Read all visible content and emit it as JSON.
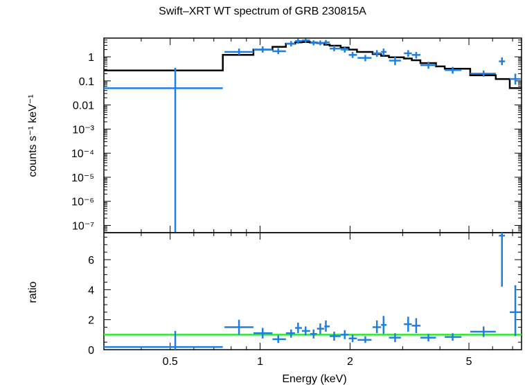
{
  "title": "Swift–XRT WT spectrum of GRB 230815A",
  "colors": {
    "data": "#1f7fe0",
    "model": "#000000",
    "unity": "#2ee82e",
    "frame": "#000000"
  },
  "chart_data": [
    {
      "type": "scatter",
      "panel": "spectrum",
      "ylabel": "counts s⁻¹ keV⁻¹",
      "yscale": "log",
      "xscale": "log",
      "xlim": [
        0.3,
        7.5
      ],
      "ylim": [
        5e-08,
        6
      ],
      "ytick_labels": [
        "1",
        "0.1",
        "0.01",
        "10⁻³",
        "10⁻⁴",
        "10⁻⁵",
        "10⁻⁶",
        "10⁻⁷"
      ],
      "ytick_values": [
        1,
        0.1,
        0.01,
        0.001,
        0.0001,
        1e-05,
        1e-06,
        1e-07
      ],
      "series": [
        {
          "points": [
            {
              "x": 0.52,
              "xlo": 0.3,
              "xhi": 0.75,
              "y": 0.05,
              "ylo": 5e-08,
              "yhi": 0.35
            },
            {
              "x": 0.85,
              "xlo": 0.76,
              "xhi": 0.95,
              "y": 1.6,
              "ylo": 1.2,
              "yhi": 2.2
            },
            {
              "x": 1.02,
              "xlo": 0.95,
              "xhi": 1.1,
              "y": 2.0,
              "ylo": 1.5,
              "yhi": 2.7
            },
            {
              "x": 1.15,
              "xlo": 1.1,
              "xhi": 1.22,
              "y": 1.7,
              "ylo": 1.3,
              "yhi": 2.3
            },
            {
              "x": 1.27,
              "xlo": 1.22,
              "xhi": 1.31,
              "y": 3.5,
              "ylo": 2.7,
              "yhi": 4.5
            },
            {
              "x": 1.34,
              "xlo": 1.31,
              "xhi": 1.38,
              "y": 4.5,
              "ylo": 3.5,
              "yhi": 5.6
            },
            {
              "x": 1.42,
              "xlo": 1.38,
              "xhi": 1.47,
              "y": 4.8,
              "ylo": 3.8,
              "yhi": 5.8
            },
            {
              "x": 1.51,
              "xlo": 1.47,
              "xhi": 1.55,
              "y": 3.8,
              "ylo": 3.0,
              "yhi": 4.8
            },
            {
              "x": 1.59,
              "xlo": 1.55,
              "xhi": 1.64,
              "y": 3.8,
              "ylo": 3.0,
              "yhi": 4.8
            },
            {
              "x": 1.66,
              "xlo": 1.64,
              "xhi": 1.71,
              "y": 4.0,
              "ylo": 3.2,
              "yhi": 5.0
            },
            {
              "x": 1.77,
              "xlo": 1.71,
              "xhi": 1.86,
              "y": 2.2,
              "ylo": 1.7,
              "yhi": 2.9
            },
            {
              "x": 1.92,
              "xlo": 1.86,
              "xhi": 1.98,
              "y": 2.0,
              "ylo": 1.5,
              "yhi": 2.7
            },
            {
              "x": 2.04,
              "xlo": 1.98,
              "xhi": 2.11,
              "y": 1.2,
              "ylo": 0.9,
              "yhi": 1.6
            },
            {
              "x": 2.25,
              "xlo": 2.12,
              "xhi": 2.36,
              "y": 0.9,
              "ylo": 0.65,
              "yhi": 1.2
            },
            {
              "x": 2.46,
              "xlo": 2.38,
              "xhi": 2.54,
              "y": 1.4,
              "ylo": 1.0,
              "yhi": 1.9
            },
            {
              "x": 2.59,
              "xlo": 2.54,
              "xhi": 2.65,
              "y": 1.6,
              "ylo": 1.1,
              "yhi": 2.2
            },
            {
              "x": 2.83,
              "xlo": 2.7,
              "xhi": 2.96,
              "y": 0.7,
              "ylo": 0.45,
              "yhi": 1.0
            },
            {
              "x": 3.13,
              "xlo": 3.03,
              "xhi": 3.22,
              "y": 1.4,
              "ylo": 1.0,
              "yhi": 1.9
            },
            {
              "x": 3.33,
              "xlo": 3.22,
              "xhi": 3.44,
              "y": 1.2,
              "ylo": 0.85,
              "yhi": 1.6
            },
            {
              "x": 3.66,
              "xlo": 3.44,
              "xhi": 3.88,
              "y": 0.45,
              "ylo": 0.32,
              "yhi": 0.62
            },
            {
              "x": 4.41,
              "xlo": 4.15,
              "xhi": 4.72,
              "y": 0.28,
              "ylo": 0.2,
              "yhi": 0.38
            },
            {
              "x": 5.6,
              "xlo": 5.05,
              "xhi": 6.15,
              "y": 0.2,
              "ylo": 0.15,
              "yhi": 0.27
            },
            {
              "x": 6.45,
              "xlo": 6.3,
              "xhi": 6.6,
              "y": 0.65,
              "ylo": 0.45,
              "yhi": 0.95
            },
            {
              "x": 7.15,
              "xlo": 6.85,
              "xhi": 7.45,
              "y": 0.12,
              "ylo": 0.07,
              "yhi": 0.2
            }
          ]
        }
      ],
      "model_steps": [
        {
          "x0": 0.3,
          "x1": 0.75,
          "y": 0.27
        },
        {
          "x0": 0.75,
          "x1": 0.95,
          "y": 1.2
        },
        {
          "x0": 0.95,
          "x1": 1.1,
          "y": 2.0
        },
        {
          "x0": 1.1,
          "x1": 1.22,
          "y": 2.6
        },
        {
          "x0": 1.22,
          "x1": 1.31,
          "y": 3.5
        },
        {
          "x0": 1.31,
          "x1": 1.38,
          "y": 4.0
        },
        {
          "x0": 1.38,
          "x1": 1.47,
          "y": 4.1
        },
        {
          "x0": 1.47,
          "x1": 1.55,
          "y": 3.9
        },
        {
          "x0": 1.55,
          "x1": 1.64,
          "y": 3.7
        },
        {
          "x0": 1.64,
          "x1": 1.71,
          "y": 3.2
        },
        {
          "x0": 1.71,
          "x1": 1.86,
          "y": 2.9
        },
        {
          "x0": 1.86,
          "x1": 1.98,
          "y": 2.4
        },
        {
          "x0": 1.98,
          "x1": 2.11,
          "y": 2.0
        },
        {
          "x0": 2.11,
          "x1": 2.38,
          "y": 1.6
        },
        {
          "x0": 2.38,
          "x1": 2.54,
          "y": 1.3
        },
        {
          "x0": 2.54,
          "x1": 2.7,
          "y": 1.1
        },
        {
          "x0": 2.7,
          "x1": 3.03,
          "y": 0.95
        },
        {
          "x0": 3.03,
          "x1": 3.22,
          "y": 0.85
        },
        {
          "x0": 3.22,
          "x1": 3.44,
          "y": 0.72
        },
        {
          "x0": 3.44,
          "x1": 3.88,
          "y": 0.55
        },
        {
          "x0": 3.88,
          "x1": 4.15,
          "y": 0.4
        },
        {
          "x0": 4.15,
          "x1": 5.05,
          "y": 0.32
        },
        {
          "x0": 5.05,
          "x1": 6.15,
          "y": 0.17
        },
        {
          "x0": 6.15,
          "x1": 6.85,
          "y": 0.12
        },
        {
          "x0": 6.85,
          "x1": 7.5,
          "y": 0.05
        }
      ]
    },
    {
      "type": "scatter",
      "panel": "ratio",
      "xlabel": "Energy (keV)",
      "ylabel": "ratio",
      "xscale": "log",
      "xlim": [
        0.3,
        7.5
      ],
      "ylim": [
        0,
        7.8
      ],
      "ytick_labels": [
        "0",
        "2",
        "4",
        "6"
      ],
      "ytick_values": [
        0,
        2,
        4,
        6
      ],
      "xtick_labels": [
        "0.5",
        "1",
        "2",
        "5"
      ],
      "xtick_values": [
        0.5,
        1,
        2,
        5
      ],
      "unity_line": 1,
      "series": [
        {
          "points": [
            {
              "x": 0.52,
              "xlo": 0.3,
              "xhi": 0.75,
              "y": 0.18,
              "ylo": 0,
              "yhi": 1.25
            },
            {
              "x": 0.85,
              "xlo": 0.76,
              "xhi": 0.95,
              "y": 1.5,
              "ylo": 1.0,
              "yhi": 2.0
            },
            {
              "x": 1.02,
              "xlo": 0.95,
              "xhi": 1.1,
              "y": 1.1,
              "ylo": 0.75,
              "yhi": 1.45
            },
            {
              "x": 1.15,
              "xlo": 1.1,
              "xhi": 1.22,
              "y": 0.7,
              "ylo": 0.45,
              "yhi": 0.95
            },
            {
              "x": 1.27,
              "xlo": 1.22,
              "xhi": 1.31,
              "y": 1.1,
              "ylo": 0.8,
              "yhi": 1.35
            },
            {
              "x": 1.34,
              "xlo": 1.31,
              "xhi": 1.38,
              "y": 1.45,
              "ylo": 1.1,
              "yhi": 1.8
            },
            {
              "x": 1.42,
              "xlo": 1.38,
              "xhi": 1.47,
              "y": 1.25,
              "ylo": 0.95,
              "yhi": 1.55
            },
            {
              "x": 1.51,
              "xlo": 1.47,
              "xhi": 1.55,
              "y": 1.05,
              "ylo": 0.75,
              "yhi": 1.35
            },
            {
              "x": 1.59,
              "xlo": 1.55,
              "xhi": 1.64,
              "y": 1.4,
              "ylo": 1.05,
              "yhi": 1.75
            },
            {
              "x": 1.66,
              "xlo": 1.64,
              "xhi": 1.71,
              "y": 1.55,
              "ylo": 1.2,
              "yhi": 1.95
            },
            {
              "x": 1.77,
              "xlo": 1.71,
              "xhi": 1.86,
              "y": 0.9,
              "ylo": 0.6,
              "yhi": 1.2
            },
            {
              "x": 1.92,
              "xlo": 1.86,
              "xhi": 1.98,
              "y": 1.0,
              "ylo": 0.7,
              "yhi": 1.3
            },
            {
              "x": 2.04,
              "xlo": 1.98,
              "xhi": 2.11,
              "y": 0.75,
              "ylo": 0.5,
              "yhi": 1.0
            },
            {
              "x": 2.25,
              "xlo": 2.12,
              "xhi": 2.36,
              "y": 0.65,
              "ylo": 0.45,
              "yhi": 0.9
            },
            {
              "x": 2.46,
              "xlo": 2.38,
              "xhi": 2.54,
              "y": 1.5,
              "ylo": 1.1,
              "yhi": 1.95
            },
            {
              "x": 2.59,
              "xlo": 2.54,
              "xhi": 2.65,
              "y": 1.65,
              "ylo": 1.05,
              "yhi": 2.25
            },
            {
              "x": 2.83,
              "xlo": 2.7,
              "xhi": 2.96,
              "y": 0.8,
              "ylo": 0.5,
              "yhi": 1.1
            },
            {
              "x": 3.13,
              "xlo": 3.03,
              "xhi": 3.22,
              "y": 1.7,
              "ylo": 1.2,
              "yhi": 2.2
            },
            {
              "x": 3.33,
              "xlo": 3.22,
              "xhi": 3.44,
              "y": 1.6,
              "ylo": 1.1,
              "yhi": 2.1
            },
            {
              "x": 3.66,
              "xlo": 3.44,
              "xhi": 3.88,
              "y": 0.8,
              "ylo": 0.55,
              "yhi": 1.05
            },
            {
              "x": 4.41,
              "xlo": 4.15,
              "xhi": 4.72,
              "y": 0.85,
              "ylo": 0.6,
              "yhi": 1.1
            },
            {
              "x": 5.6,
              "xlo": 5.05,
              "xhi": 6.15,
              "y": 1.2,
              "ylo": 0.85,
              "yhi": 1.55
            },
            {
              "x": 6.45,
              "xlo": 6.3,
              "xhi": 6.6,
              "y": 7.6,
              "ylo": 4.2,
              "yhi": 7.8
            },
            {
              "x": 7.15,
              "xlo": 6.85,
              "xhi": 7.45,
              "y": 2.5,
              "ylo": 0.9,
              "yhi": 4.3
            }
          ]
        }
      ]
    }
  ]
}
